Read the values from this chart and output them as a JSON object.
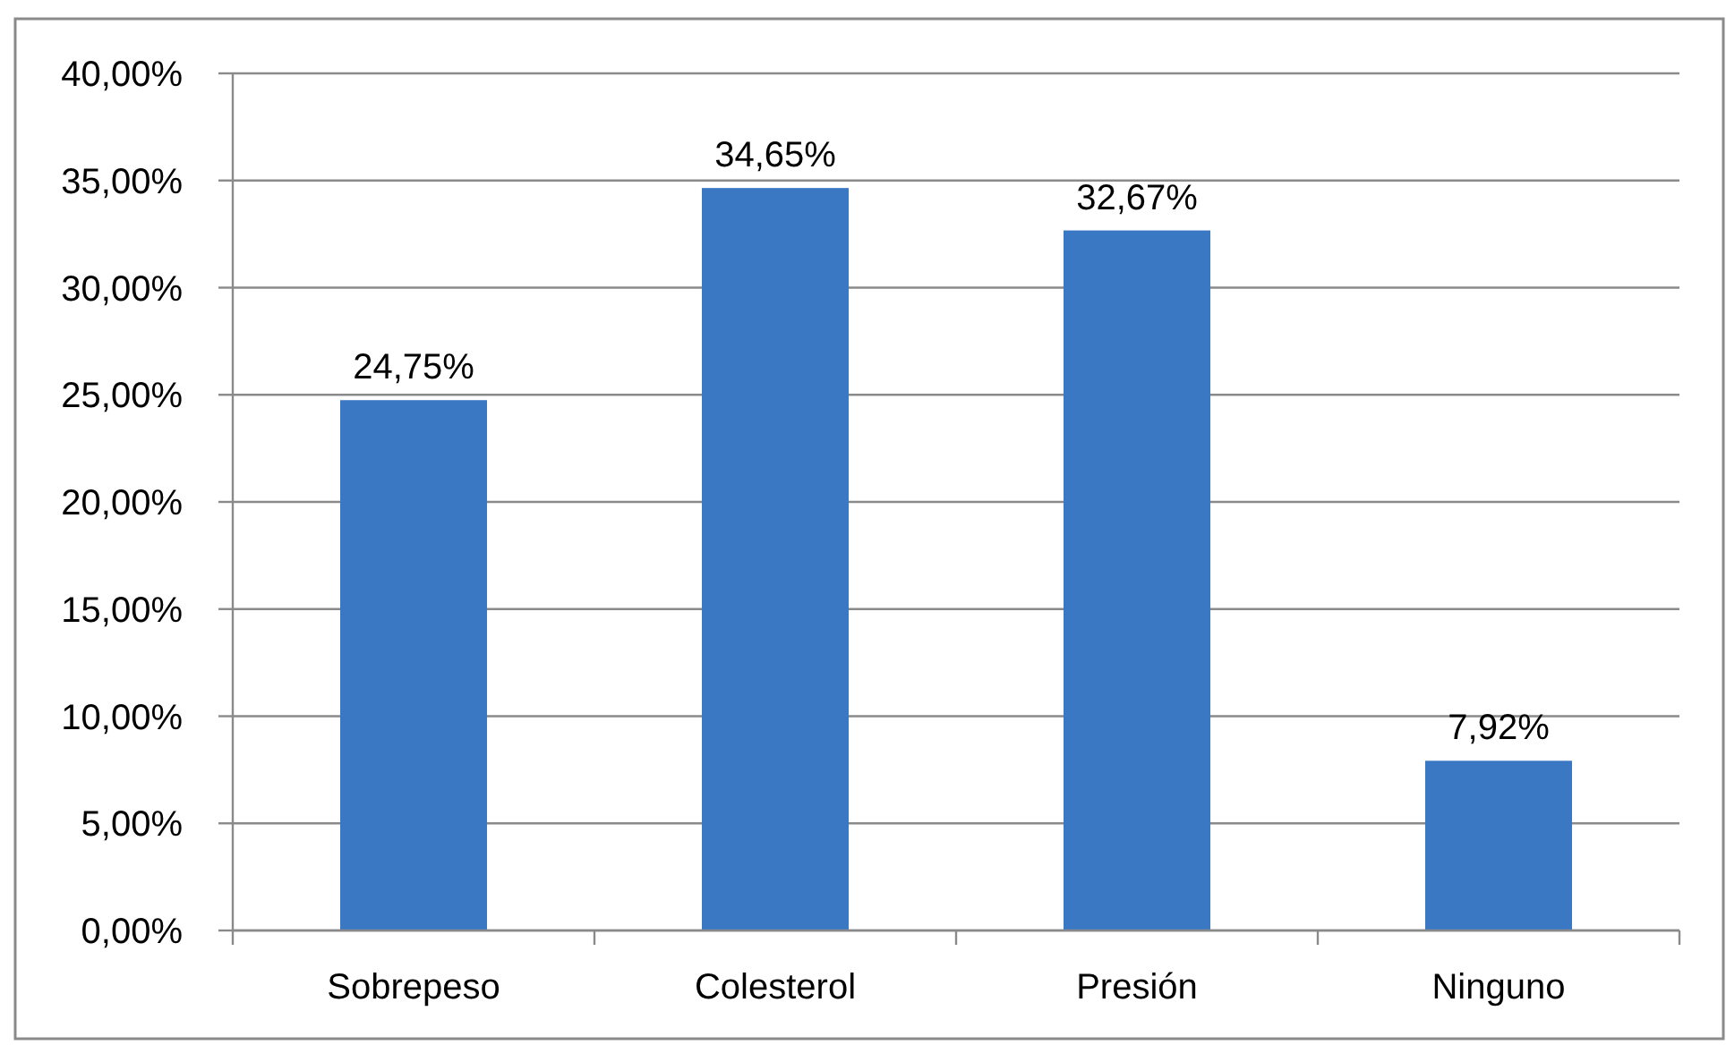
{
  "chart_data": {
    "type": "bar",
    "categories": [
      "Sobrepeso",
      "Colesterol",
      "Presión",
      "Ninguno"
    ],
    "values": [
      24.75,
      34.65,
      32.67,
      7.92
    ],
    "color": "#3b78c4",
    "value_labels": [
      "24,75%",
      "34,65%",
      "32,67%",
      "7,92%"
    ],
    "ylim": [
      0,
      40
    ],
    "yticks": [
      {
        "value": 0,
        "label": "0,00%"
      },
      {
        "value": 5,
        "label": "5,00%"
      },
      {
        "value": 10,
        "label": "10,00%"
      },
      {
        "value": 15,
        "label": "15,00%"
      },
      {
        "value": 20,
        "label": "20,00%"
      },
      {
        "value": 25,
        "label": "25,00%"
      },
      {
        "value": 30,
        "label": "30,00%"
      },
      {
        "value": 35,
        "label": "35,00%"
      },
      {
        "value": 40,
        "label": "40,00%"
      }
    ],
    "grid": "y"
  }
}
